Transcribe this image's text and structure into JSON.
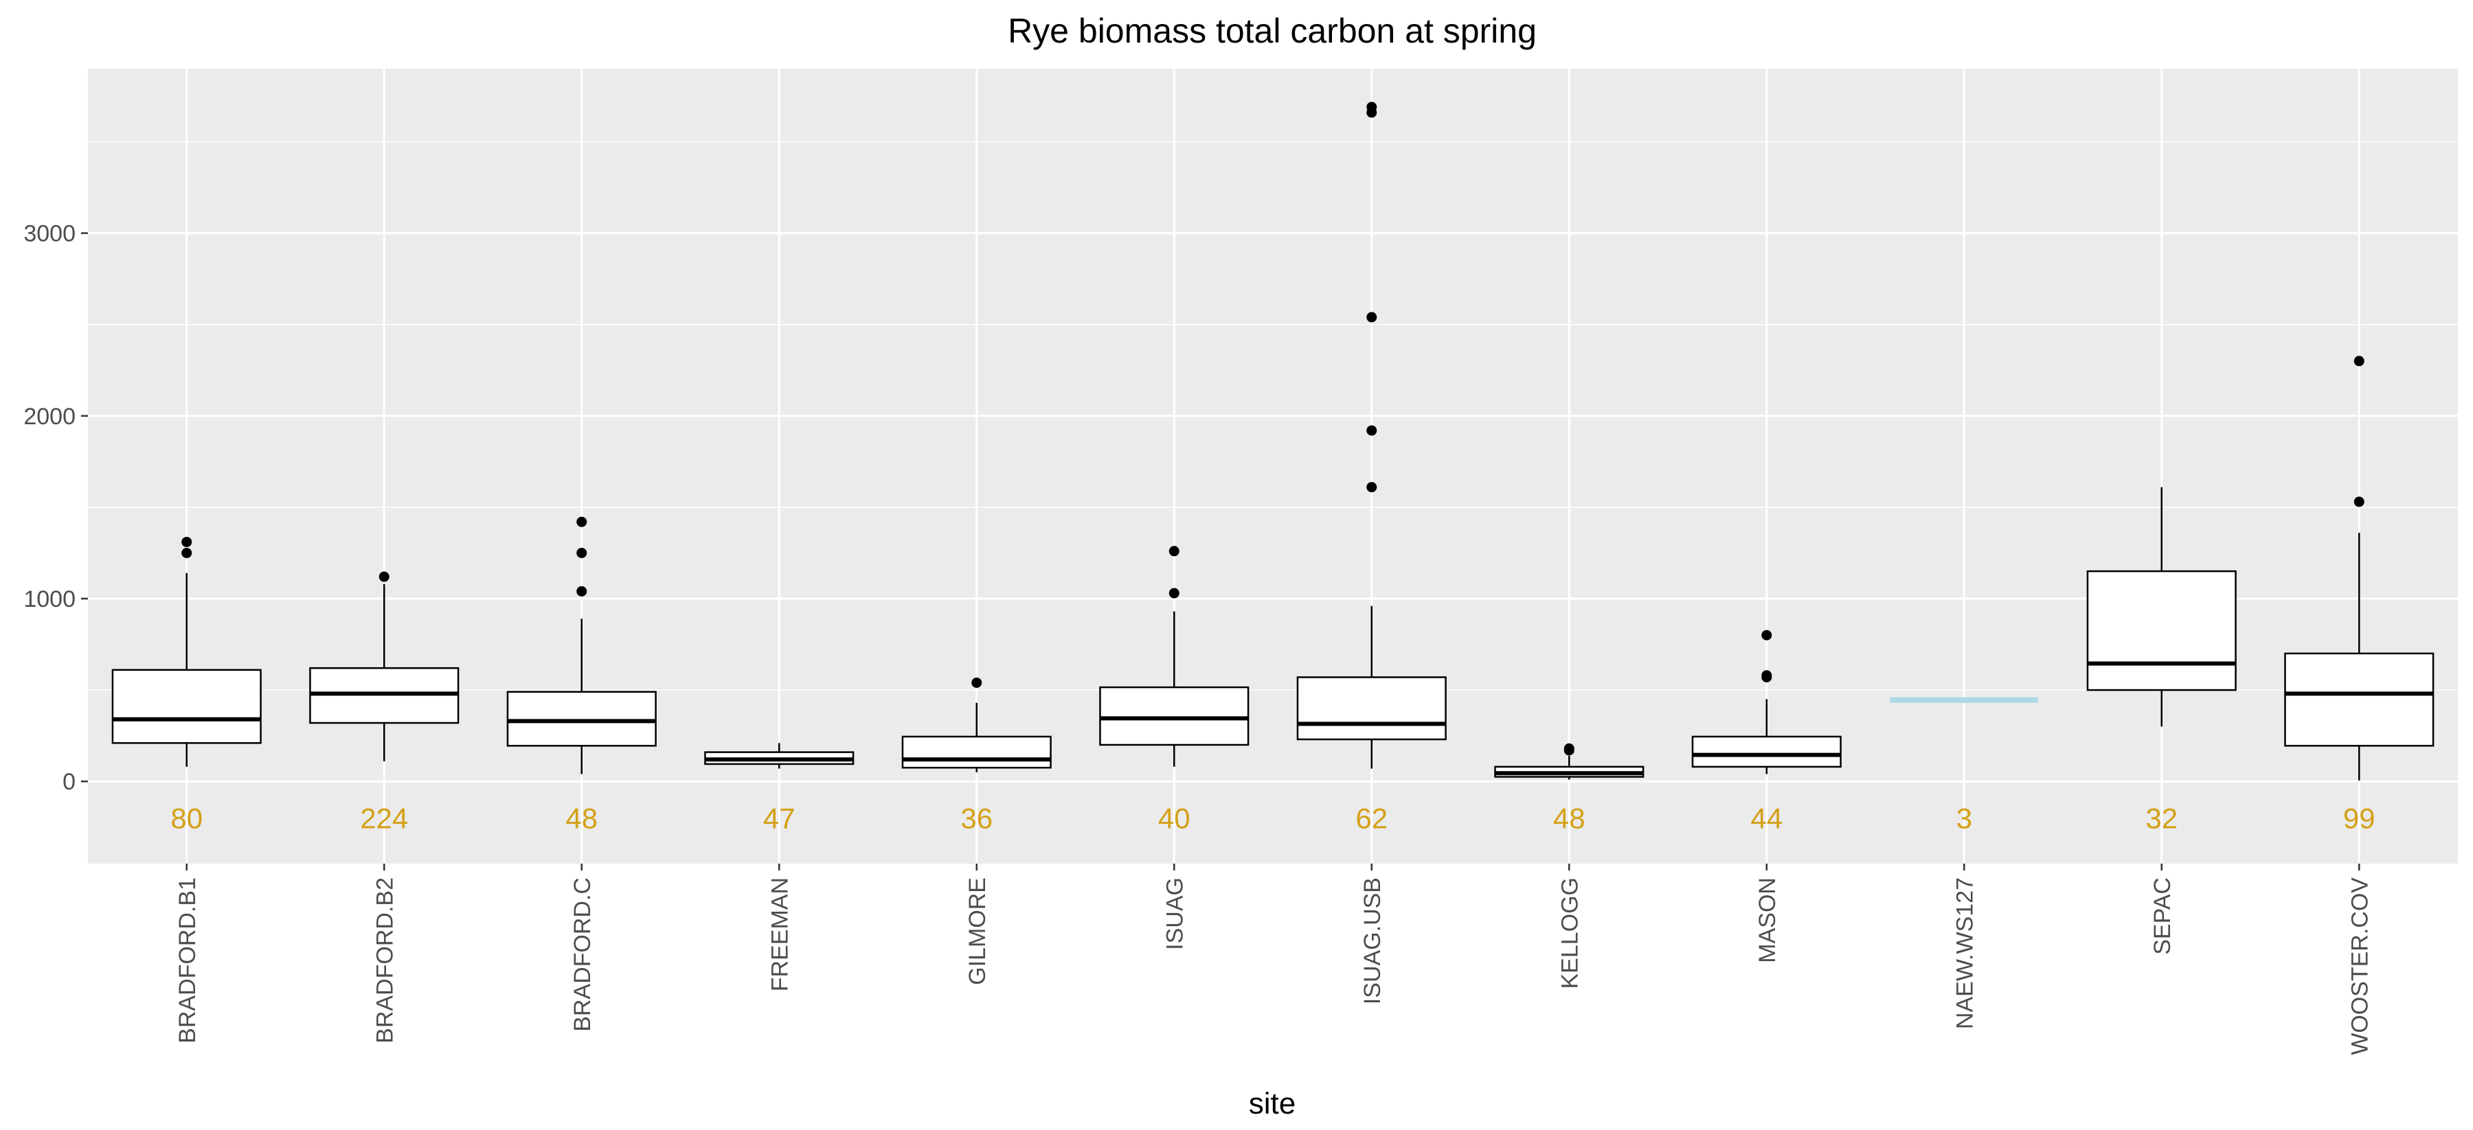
{
  "chart_data": {
    "type": "boxplot",
    "title": "Rye biomass total carbon at spring",
    "xlabel": "site",
    "ylabel": "",
    "ylim": [
      -450,
      3900
    ],
    "yticks": [
      0,
      1000,
      2000,
      3000
    ],
    "grid": true,
    "background": "#ebebeb",
    "count_label_value": -200,
    "count_color": "#D4A017",
    "sites": [
      {
        "name": "BRADFORD.B1",
        "n": "80",
        "whisker_low": 80,
        "q1": 210,
        "median": 340,
        "q3": 610,
        "whisker_high": 1140,
        "outliers": [
          1250,
          1310
        ]
      },
      {
        "name": "BRADFORD.B2",
        "n": "224",
        "whisker_low": 110,
        "q1": 320,
        "median": 480,
        "q3": 620,
        "whisker_high": 1080,
        "outliers": [
          1120
        ]
      },
      {
        "name": "BRADFORD.C",
        "n": "48",
        "whisker_low": 40,
        "q1": 195,
        "median": 330,
        "q3": 490,
        "whisker_high": 890,
        "outliers": [
          1040,
          1250,
          1420
        ]
      },
      {
        "name": "FREEMAN",
        "n": "47",
        "whisker_low": 70,
        "q1": 95,
        "median": 120,
        "q3": 160,
        "whisker_high": 210,
        "outliers": []
      },
      {
        "name": "GILMORE",
        "n": "36",
        "whisker_low": 50,
        "q1": 75,
        "median": 120,
        "q3": 245,
        "whisker_high": 430,
        "outliers": [
          540
        ]
      },
      {
        "name": "ISUAG",
        "n": "40",
        "whisker_low": 80,
        "q1": 200,
        "median": 345,
        "q3": 515,
        "whisker_high": 930,
        "outliers": [
          1030,
          1260
        ]
      },
      {
        "name": "ISUAG.USB",
        "n": "62",
        "whisker_low": 70,
        "q1": 230,
        "median": 315,
        "q3": 570,
        "whisker_high": 960,
        "outliers": [
          1610,
          1920,
          2540,
          3660,
          3690
        ]
      },
      {
        "name": "KELLOGG",
        "n": "48",
        "whisker_low": 10,
        "q1": 25,
        "median": 45,
        "q3": 80,
        "whisker_high": 140,
        "outliers": [
          170,
          180
        ]
      },
      {
        "name": "MASON",
        "n": "44",
        "whisker_low": 40,
        "q1": 80,
        "median": 145,
        "q3": 245,
        "whisker_high": 450,
        "outliers": [
          570,
          580,
          800
        ]
      },
      {
        "name": "NAEW.WS127",
        "n": "3",
        "whisker_low": 445,
        "q1": 445,
        "median": 445,
        "q3": 445,
        "whisker_high": 445,
        "outliers": [],
        "color": "#add8e6"
      },
      {
        "name": "SEPAC",
        "n": "32",
        "whisker_low": 300,
        "q1": 500,
        "median": 645,
        "q3": 1150,
        "whisker_high": 1610,
        "outliers": []
      },
      {
        "name": "WOOSTER.COV",
        "n": "99",
        "whisker_low": 5,
        "q1": 195,
        "median": 480,
        "q3": 700,
        "whisker_high": 1360,
        "outliers": [
          1530,
          2300
        ]
      }
    ]
  }
}
